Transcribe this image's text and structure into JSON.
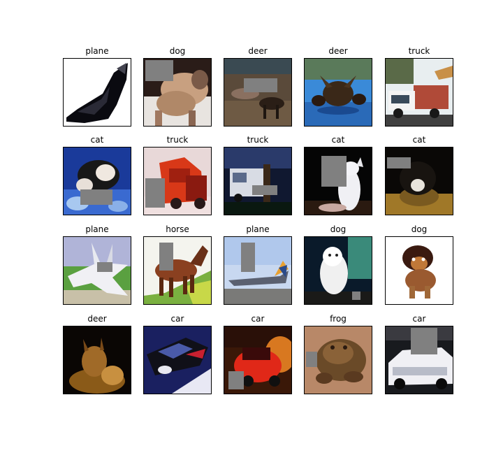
{
  "grid": {
    "images": [
      {
        "label": "plane"
      },
      {
        "label": "dog"
      },
      {
        "label": "deer"
      },
      {
        "label": "deer"
      },
      {
        "label": "truck"
      },
      {
        "label": "cat"
      },
      {
        "label": "truck"
      },
      {
        "label": "truck"
      },
      {
        "label": "cat"
      },
      {
        "label": "cat"
      },
      {
        "label": "plane"
      },
      {
        "label": "horse"
      },
      {
        "label": "plane"
      },
      {
        "label": "dog"
      },
      {
        "label": "dog"
      },
      {
        "label": "deer"
      },
      {
        "label": "car"
      },
      {
        "label": "car"
      },
      {
        "label": "frog"
      },
      {
        "label": "car"
      }
    ]
  },
  "colors": {
    "cutout_gray": "#808080"
  }
}
